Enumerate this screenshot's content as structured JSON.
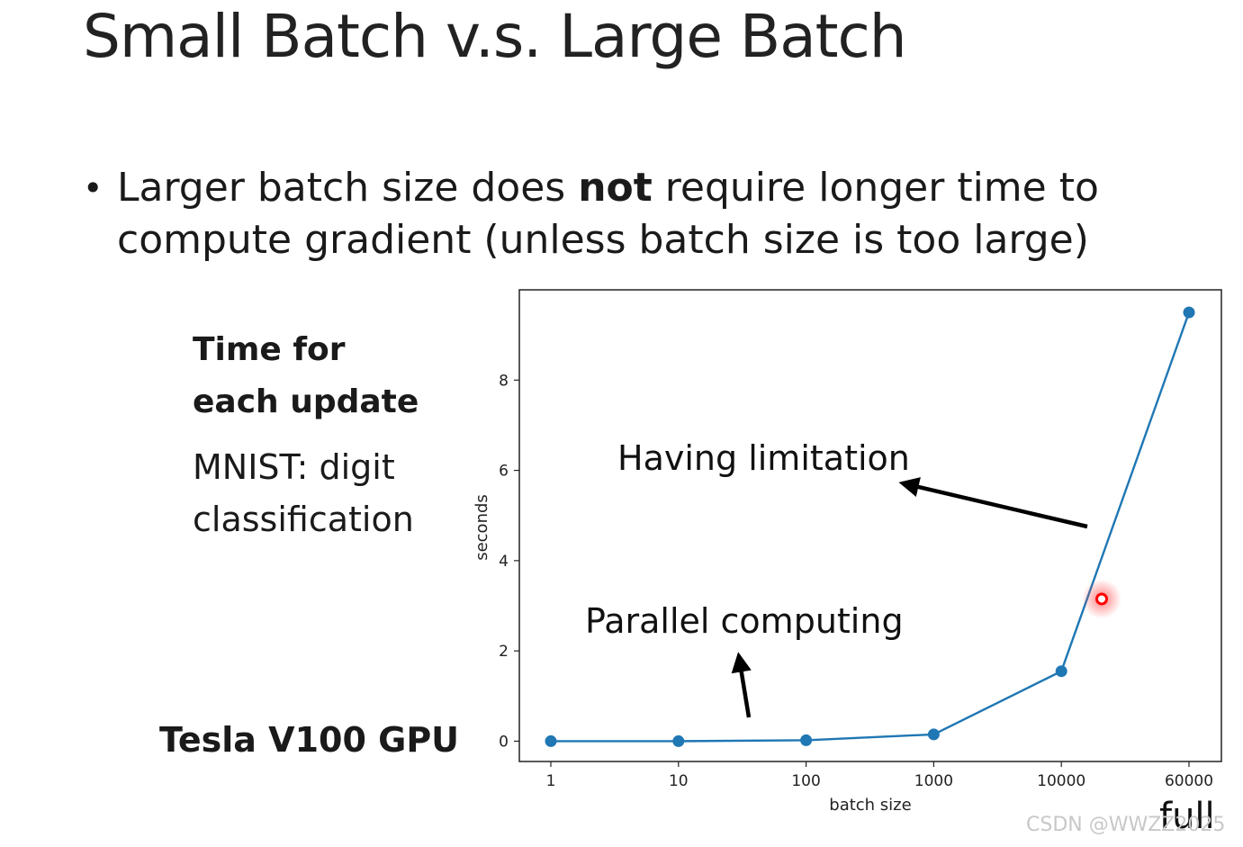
{
  "slide": {
    "title": "Small Batch v.s. Large Batch",
    "bullet_line1_pre": "Larger batch size does ",
    "bullet_line1_bold": "not",
    "bullet_line1_post": " require longer time to",
    "bullet_line2": "compute gradient  (unless batch size is too large)"
  },
  "side_panel": {
    "heading_line1": "Time for",
    "heading_line2": "each update",
    "note_line1": "MNIST: digit",
    "note_line2": "classification",
    "hardware": "Tesla V100 GPU"
  },
  "extra": {
    "full_label": "full",
    "watermark": "CSDN @WWZZ2025"
  },
  "chart_data": {
    "type": "line",
    "categories": [
      "1",
      "10",
      "100",
      "1000",
      "10000",
      "60000"
    ],
    "series": [
      {
        "values": [
          0.0,
          0.0,
          0.02,
          0.15,
          1.55,
          9.5
        ]
      }
    ],
    "xlabel": "batch size",
    "ylabel": "seconds",
    "ylim": [
      -0.45,
      10.0
    ],
    "yticks": [
      0,
      2,
      4,
      6,
      8
    ],
    "grid": false,
    "line_color": "#1f77b4",
    "annotations": [
      {
        "text": "Having limitation"
      },
      {
        "text": "Parallel computing"
      }
    ],
    "highlight_marker_y": 3.15,
    "highlight_color": "#ff0000"
  }
}
